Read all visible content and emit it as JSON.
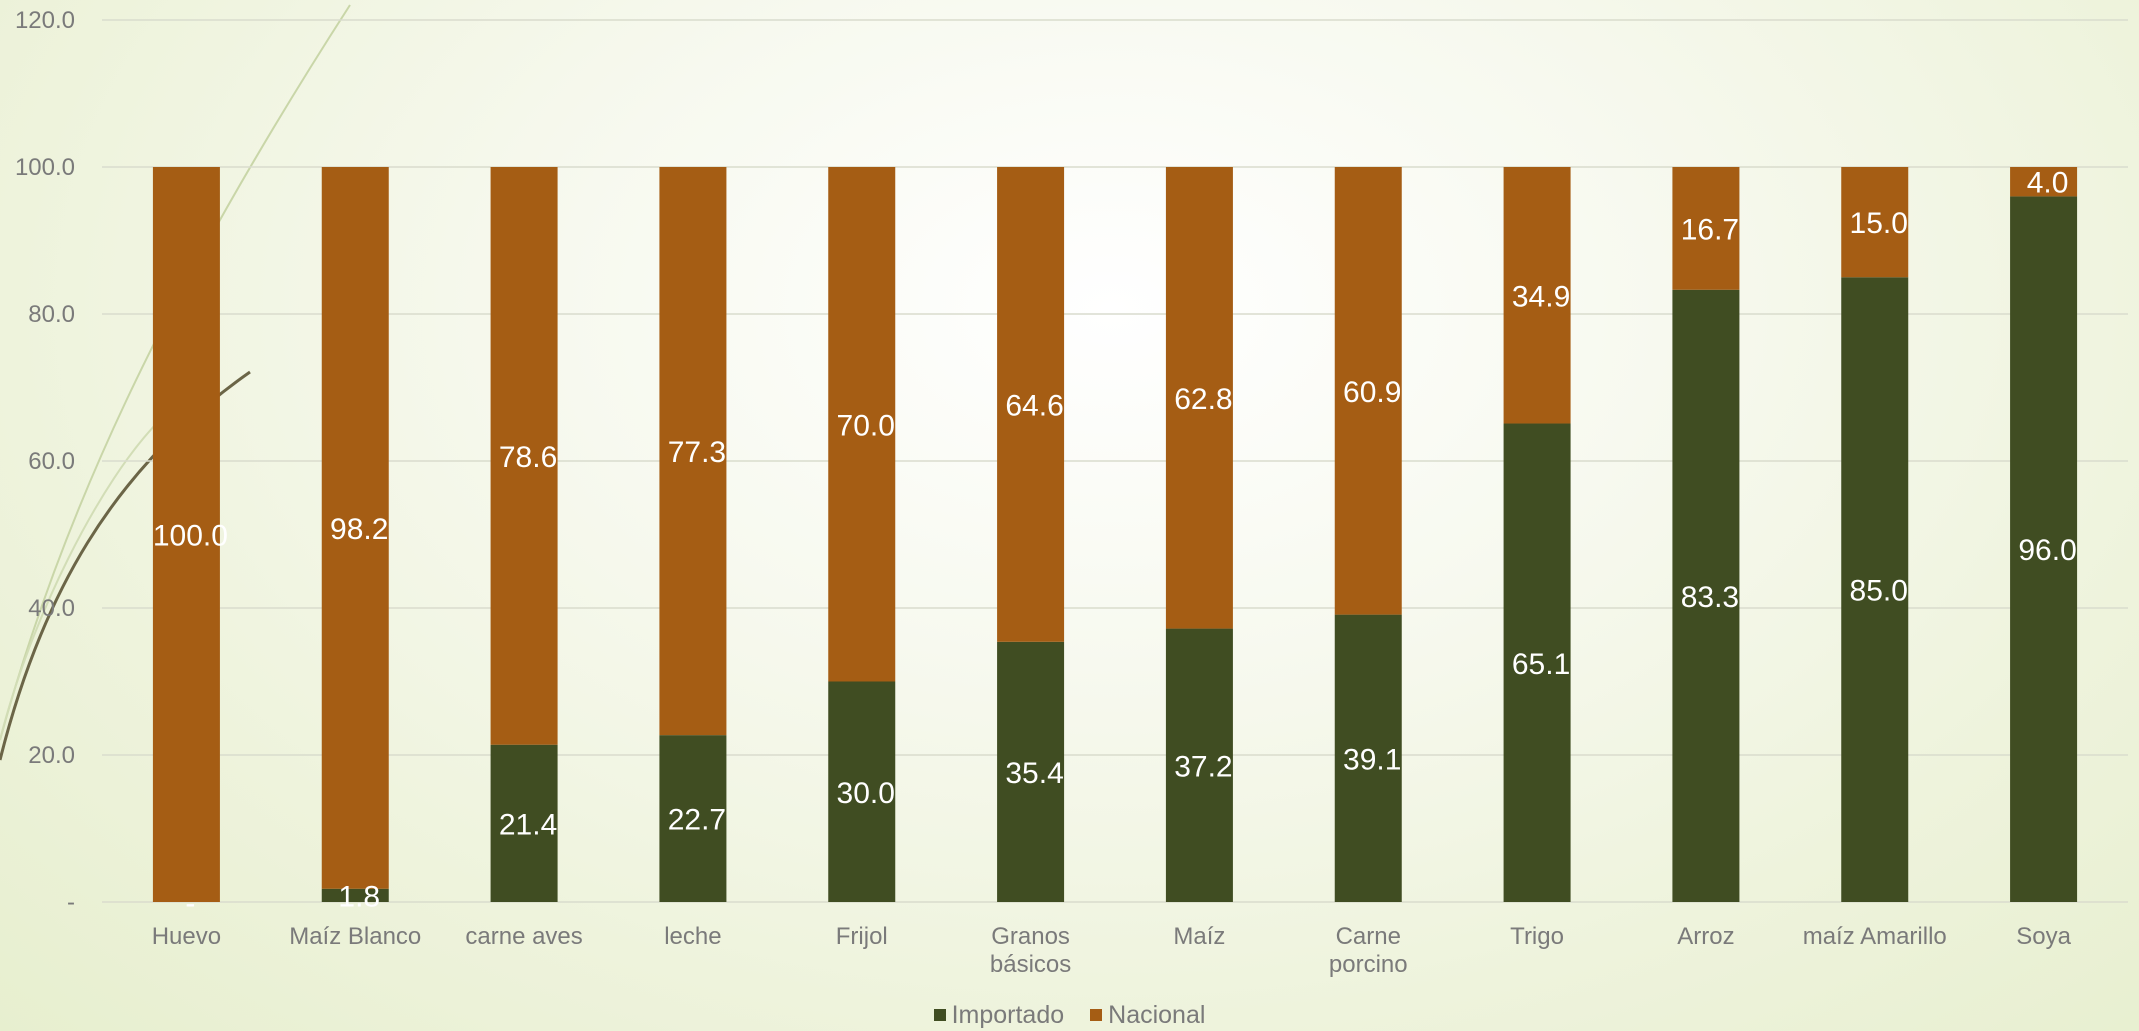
{
  "chart_data": {
    "type": "bar",
    "stacked": true,
    "categories": [
      [
        "Huevo"
      ],
      [
        "Maíz Blanco"
      ],
      [
        "carne aves"
      ],
      [
        "leche"
      ],
      [
        "Frijol"
      ],
      [
        "Granos",
        "básicos"
      ],
      [
        "Maíz"
      ],
      [
        "Carne",
        "porcino"
      ],
      [
        "Trigo"
      ],
      [
        "Arroz"
      ],
      [
        "maíz Amarillo"
      ],
      [
        "Soya"
      ]
    ],
    "series": [
      {
        "name": "Importado",
        "color": "#404d22",
        "values": [
          0.0,
          1.8,
          21.4,
          22.7,
          30.0,
          35.4,
          37.2,
          39.1,
          65.1,
          83.3,
          85.0,
          96.0
        ],
        "labels": [
          "-",
          "1.8",
          "21.4",
          "22.7",
          "30.0",
          "35.4",
          "37.2",
          "39.1",
          "65.1",
          "83.3",
          "85.0",
          "96.0"
        ]
      },
      {
        "name": "Nacional",
        "color": "#a55d14",
        "values": [
          100.0,
          98.2,
          78.6,
          77.3,
          70.0,
          64.6,
          62.8,
          60.9,
          34.9,
          16.7,
          15.0,
          4.0
        ],
        "labels": [
          "100.0",
          "98.2",
          "78.6",
          "77.3",
          "70.0",
          "64.6",
          "62.8",
          "60.9",
          "34.9",
          "16.7",
          "15.0",
          "4.0"
        ]
      }
    ],
    "y_ticks": [
      0,
      20,
      40,
      60,
      80,
      100,
      120
    ],
    "y_tick_labels": [
      "-",
      "20.0",
      "40.0",
      "60.0",
      "80.0",
      "100.0",
      "120.0"
    ],
    "ylim": [
      0,
      120
    ],
    "grid": true,
    "legend_position": "bottom",
    "title": "",
    "xlabel": "",
    "ylabel": ""
  }
}
